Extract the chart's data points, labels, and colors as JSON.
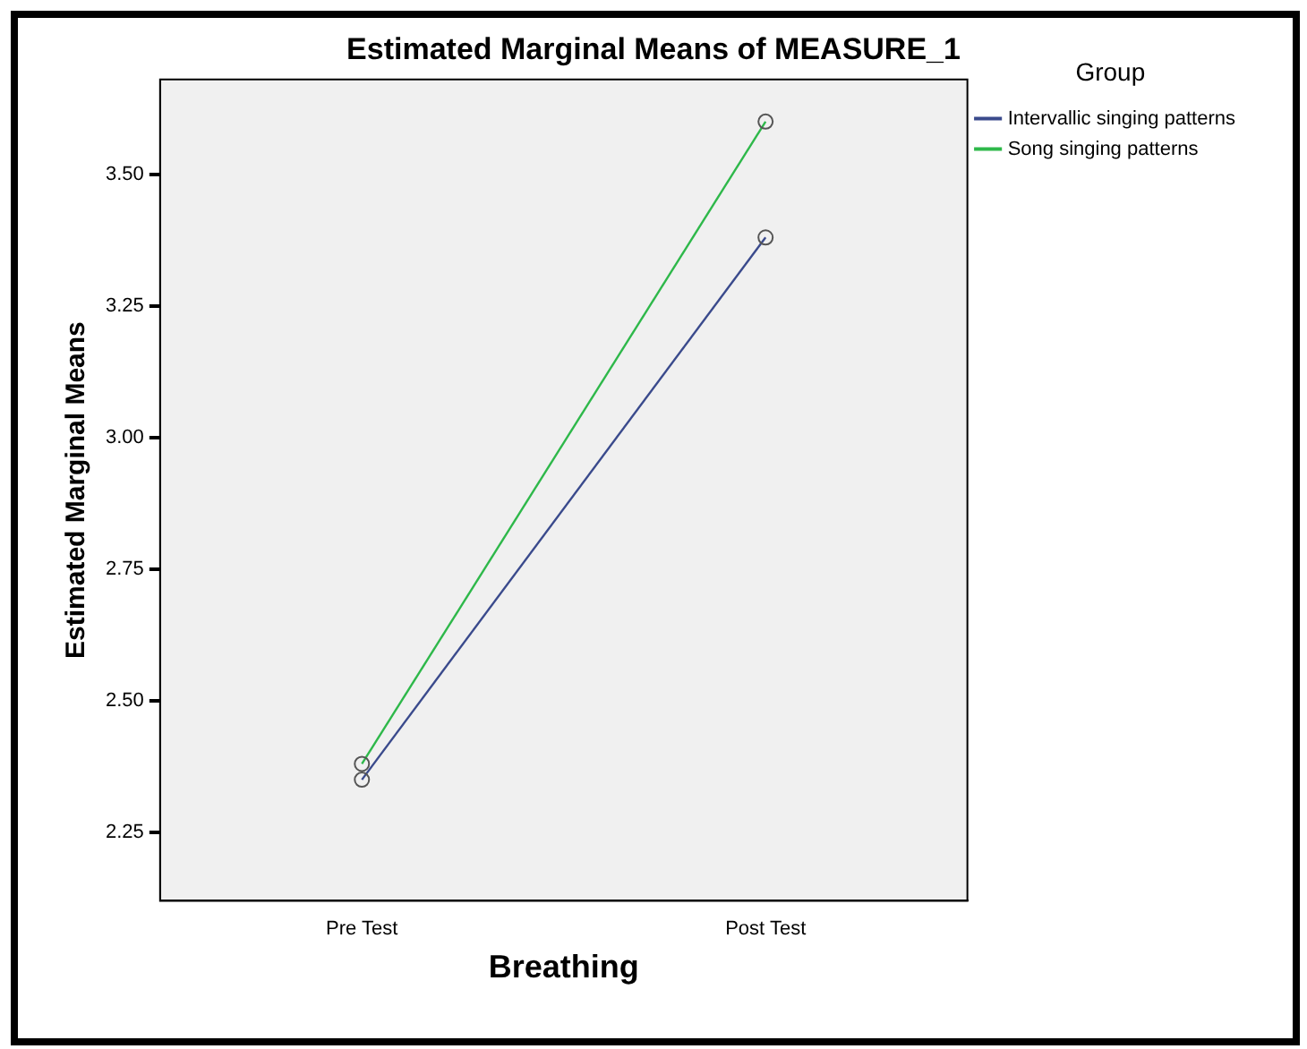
{
  "chart_data": {
    "type": "line",
    "title": "Estimated Marginal Means of MEASURE_1",
    "xlabel": "Breathing",
    "ylabel": "Estimated Marginal Means",
    "legend_title": "Group",
    "categories": [
      "Pre Test",
      "Post Test"
    ],
    "series": [
      {
        "name": "Intervallic singing patterns",
        "color": "#3a4a8c",
        "values": [
          2.35,
          3.38
        ]
      },
      {
        "name": "Song singing patterns",
        "color": "#2eb84a",
        "values": [
          2.38,
          3.6
        ]
      }
    ],
    "ylim": [
      2.12,
      3.68
    ],
    "yticks": [
      {
        "value": 2.25,
        "label": "2.25"
      },
      {
        "value": 2.5,
        "label": "2.50"
      },
      {
        "value": 2.75,
        "label": "2.75"
      },
      {
        "value": 3,
        "label": "3.00"
      },
      {
        "value": 3.25,
        "label": "3.25"
      },
      {
        "value": 3.5,
        "label": "3.50"
      }
    ],
    "grid": false,
    "legend": "top right",
    "marker": "circle",
    "line_style": "solid"
  }
}
